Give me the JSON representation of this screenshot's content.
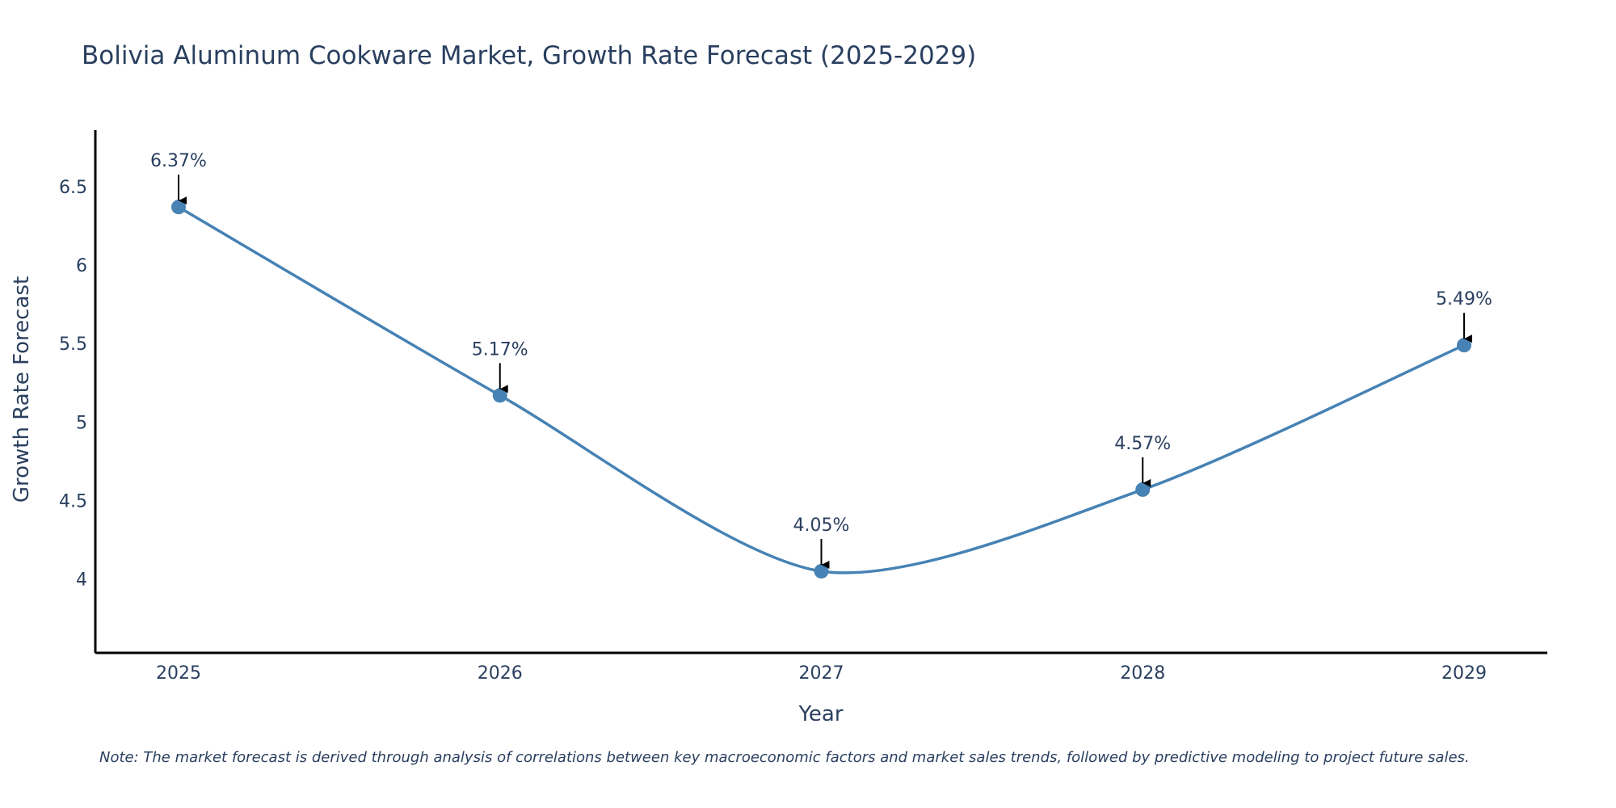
{
  "chart_data": {
    "type": "line",
    "title": "Bolivia Aluminum Cookware Market, Growth Rate Forecast (2025-2029)",
    "xlabel": "Year",
    "ylabel": "Growth Rate Forecast",
    "categories": [
      "2025",
      "2026",
      "2027",
      "2028",
      "2029"
    ],
    "series": [
      {
        "name": "Growth Rate Forecast",
        "values": [
          6.37,
          5.17,
          4.05,
          4.57,
          5.49
        ],
        "labels": [
          "6.37%",
          "5.17%",
          "4.05%",
          "4.57%",
          "5.49%"
        ]
      }
    ],
    "yticks": [
      "4",
      "4.5",
      "5",
      "5.5",
      "6",
      "6.5"
    ],
    "ylim": [
      3.53,
      6.86
    ],
    "grid": false,
    "line_color": "#4682b4",
    "arrow_color": "#000000",
    "note": "Note: The market forecast is derived through analysis of correlations between key macroeconomic factors and market sales trends, followed by predictive modeling to project future sales."
  }
}
